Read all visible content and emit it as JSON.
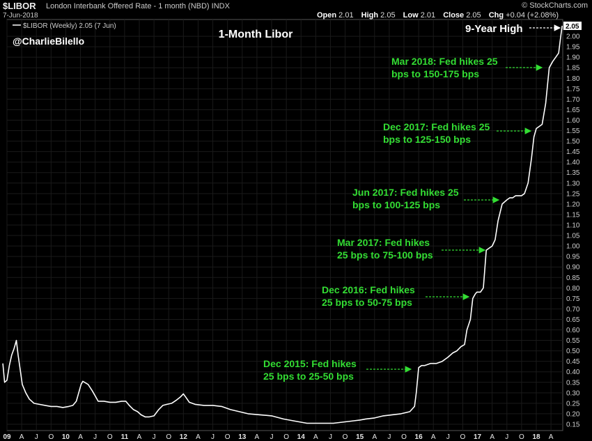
{
  "header": {
    "symbol": "$LIBOR",
    "name": "London Interbank Offered Rate - 1 month (NBD)",
    "exchange": "INDX",
    "date": "7-Jun-2018",
    "source": "© StockCharts.com",
    "open_label": "Open",
    "open": "2.01",
    "high_label": "High",
    "high": "2.05",
    "low_label": "Low",
    "low": "2.01",
    "close_label": "Close",
    "close": "2.05",
    "chg_label": "Chg",
    "chg": "+0.04 (+2.08%)",
    "legend": "$LIBOR (Weekly) 2.05 (7 Jun)",
    "handle": "@CharlieBilello",
    "last_value": "2.05"
  },
  "colors": {
    "background": "#000000",
    "line": "#ffffff",
    "annotation": "#33dd33",
    "grid": "#1a1a1a"
  },
  "chart_data": {
    "type": "line",
    "title": "1-Month Libor",
    "ylim": [
      0.12,
      2.08
    ],
    "xlim": [
      2009.0,
      2018.45
    ],
    "y_ticks": [
      "0.15",
      "0.20",
      "0.25",
      "0.30",
      "0.35",
      "0.40",
      "0.45",
      "0.50",
      "0.55",
      "0.60",
      "0.65",
      "0.70",
      "0.75",
      "0.80",
      "0.85",
      "0.90",
      "0.95",
      "1.00",
      "1.05",
      "1.10",
      "1.15",
      "1.20",
      "1.25",
      "1.30",
      "1.35",
      "1.40",
      "1.45",
      "1.50",
      "1.55",
      "1.60",
      "1.65",
      "1.70",
      "1.75",
      "1.80",
      "1.85",
      "1.90",
      "1.95",
      "2.00"
    ],
    "x_ticks": [
      {
        "label": "09",
        "x": 2009.0,
        "bold": true
      },
      {
        "label": "A",
        "x": 2009.25
      },
      {
        "label": "J",
        "x": 2009.5
      },
      {
        "label": "O",
        "x": 2009.75
      },
      {
        "label": "10",
        "x": 2010.0,
        "bold": true
      },
      {
        "label": "A",
        "x": 2010.25
      },
      {
        "label": "J",
        "x": 2010.5
      },
      {
        "label": "O",
        "x": 2010.75
      },
      {
        "label": "11",
        "x": 2011.0,
        "bold": true
      },
      {
        "label": "A",
        "x": 2011.25
      },
      {
        "label": "J",
        "x": 2011.5
      },
      {
        "label": "O",
        "x": 2011.75
      },
      {
        "label": "12",
        "x": 2012.0,
        "bold": true
      },
      {
        "label": "A",
        "x": 2012.25
      },
      {
        "label": "J",
        "x": 2012.5
      },
      {
        "label": "O",
        "x": 2012.75
      },
      {
        "label": "13",
        "x": 2013.0,
        "bold": true
      },
      {
        "label": "A",
        "x": 2013.25
      },
      {
        "label": "J",
        "x": 2013.5
      },
      {
        "label": "O",
        "x": 2013.75
      },
      {
        "label": "14",
        "x": 2014.0,
        "bold": true
      },
      {
        "label": "A",
        "x": 2014.25
      },
      {
        "label": "J",
        "x": 2014.5
      },
      {
        "label": "O",
        "x": 2014.75
      },
      {
        "label": "15",
        "x": 2015.0,
        "bold": true
      },
      {
        "label": "A",
        "x": 2015.25
      },
      {
        "label": "J",
        "x": 2015.5
      },
      {
        "label": "O",
        "x": 2015.75
      },
      {
        "label": "16",
        "x": 2016.0,
        "bold": true
      },
      {
        "label": "A",
        "x": 2016.25
      },
      {
        "label": "J",
        "x": 2016.5
      },
      {
        "label": "O",
        "x": 2016.75
      },
      {
        "label": "17",
        "x": 2017.0,
        "bold": true
      },
      {
        "label": "A",
        "x": 2017.25
      },
      {
        "label": "J",
        "x": 2017.5
      },
      {
        "label": "O",
        "x": 2017.75
      },
      {
        "label": "18",
        "x": 2018.0,
        "bold": true
      },
      {
        "label": "A",
        "x": 2018.25
      }
    ],
    "series": [
      {
        "x": [
          2008.93,
          2008.96,
          2009.0,
          2009.04,
          2009.08,
          2009.12,
          2009.16,
          2009.19,
          2009.22,
          2009.26,
          2009.32,
          2009.38,
          2009.46,
          2009.55,
          2009.65,
          2009.75,
          2009.85,
          2009.95,
          2010.05,
          2010.12,
          2010.18,
          2010.22,
          2010.26,
          2010.29,
          2010.32,
          2010.38,
          2010.45,
          2010.5,
          2010.55,
          2010.65,
          2010.75,
          2010.85,
          2010.95,
          2011.02,
          2011.08,
          2011.15,
          2011.22,
          2011.28,
          2011.35,
          2011.42,
          2011.5,
          2011.58,
          2011.65,
          2011.72,
          2011.8,
          2011.88,
          2011.95,
          2012.0,
          2012.05,
          2012.1,
          2012.2,
          2012.35,
          2012.5,
          2012.65,
          2012.8,
          2012.95,
          2013.1,
          2013.3,
          2013.5,
          2013.7,
          2013.9,
          2014.0,
          2014.1,
          2014.25,
          2014.4,
          2014.55,
          2014.7,
          2014.85,
          2015.0,
          2015.1,
          2015.25,
          2015.4,
          2015.55,
          2015.7,
          2015.85,
          2015.93,
          2015.96,
          2016.0,
          2016.05,
          2016.1,
          2016.2,
          2016.3,
          2016.4,
          2016.5,
          2016.58,
          2016.65,
          2016.72,
          2016.78,
          2016.82,
          2016.88,
          2016.92,
          2016.96,
          2016.99,
          2017.05,
          2017.1,
          2017.15,
          2017.2,
          2017.25,
          2017.3,
          2017.35,
          2017.42,
          2017.5,
          2017.55,
          2017.6,
          2017.65,
          2017.7,
          2017.75,
          2017.8,
          2017.86,
          2017.92,
          2017.96,
          2018.0,
          2018.05,
          2018.1,
          2018.16,
          2018.22,
          2018.28,
          2018.33,
          2018.38,
          2018.42,
          2018.44
        ],
        "y": [
          0.44,
          0.35,
          0.36,
          0.43,
          0.48,
          0.51,
          0.55,
          0.48,
          0.42,
          0.34,
          0.3,
          0.27,
          0.25,
          0.245,
          0.24,
          0.235,
          0.235,
          0.23,
          0.235,
          0.24,
          0.26,
          0.3,
          0.34,
          0.355,
          0.35,
          0.34,
          0.31,
          0.285,
          0.26,
          0.26,
          0.255,
          0.255,
          0.26,
          0.26,
          0.24,
          0.22,
          0.21,
          0.195,
          0.185,
          0.185,
          0.19,
          0.22,
          0.24,
          0.245,
          0.25,
          0.265,
          0.28,
          0.295,
          0.275,
          0.255,
          0.245,
          0.24,
          0.24,
          0.235,
          0.22,
          0.21,
          0.2,
          0.195,
          0.19,
          0.175,
          0.165,
          0.16,
          0.155,
          0.155,
          0.155,
          0.155,
          0.16,
          0.165,
          0.17,
          0.175,
          0.18,
          0.19,
          0.195,
          0.2,
          0.21,
          0.235,
          0.3,
          0.42,
          0.43,
          0.43,
          0.44,
          0.44,
          0.45,
          0.47,
          0.49,
          0.5,
          0.52,
          0.53,
          0.6,
          0.65,
          0.75,
          0.77,
          0.78,
          0.78,
          0.8,
          0.98,
          0.99,
          1.0,
          1.03,
          1.12,
          1.2,
          1.22,
          1.23,
          1.23,
          1.24,
          1.24,
          1.24,
          1.25,
          1.3,
          1.42,
          1.52,
          1.56,
          1.57,
          1.58,
          1.68,
          1.85,
          1.88,
          1.9,
          1.92,
          2.01,
          2.05
        ]
      }
    ],
    "annotations": [
      {
        "id": "nine-year-high",
        "lines": [
          "9-Year High"
        ],
        "color": "white",
        "target_x": 2018.44,
        "target_y": 2.05
      },
      {
        "id": "mar-2018",
        "lines": [
          "Mar 2018: Fed hikes 25",
          "bps to 150-175 bps"
        ],
        "color": "green",
        "target_x": 2018.2,
        "target_y": 1.84
      },
      {
        "id": "dec-2017",
        "lines": [
          "Dec 2017: Fed hikes 25",
          "bps to 125-150 bps"
        ],
        "color": "green",
        "target_x": 2017.97,
        "target_y": 1.55
      },
      {
        "id": "jun-2017",
        "lines": [
          "Jun 2017: Fed hikes 25",
          "bps to 100-125 bps"
        ],
        "color": "green",
        "target_x": 2017.45,
        "target_y": 1.22
      },
      {
        "id": "mar-2017",
        "lines": [
          "Mar 2017: Fed hikes",
          "25 bps to 75-100 bps"
        ],
        "color": "green",
        "target_x": 2017.12,
        "target_y": 0.975
      },
      {
        "id": "dec-2016",
        "lines": [
          "Dec 2016: Fed hikes",
          "25 bps to 50-75 bps"
        ],
        "color": "green",
        "target_x": 2016.9,
        "target_y": 0.765
      },
      {
        "id": "dec-2015",
        "lines": [
          "Dec 2015: Fed hikes",
          "25 bps to 25-50 bps"
        ],
        "color": "green",
        "target_x": 2015.98,
        "target_y": 0.405
      }
    ]
  }
}
